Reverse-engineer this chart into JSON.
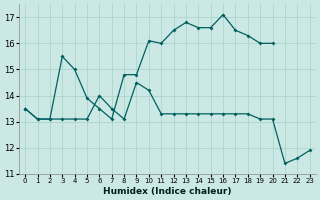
{
  "xlabel": "Humidex (Indice chaleur)",
  "background_color": "#cce8e4",
  "grid_color": "#b0d8d0",
  "line_color": "#006060",
  "xlim": [
    -0.5,
    23.5
  ],
  "ylim": [
    11,
    17.5
  ],
  "yticks": [
    11,
    12,
    13,
    14,
    15,
    16,
    17
  ],
  "xticks": [
    0,
    1,
    2,
    3,
    4,
    5,
    6,
    7,
    8,
    9,
    10,
    11,
    12,
    13,
    14,
    15,
    16,
    17,
    18,
    19,
    20,
    21,
    22,
    23
  ],
  "line1_x": [
    0,
    1,
    2,
    3,
    4,
    5,
    6,
    7,
    8,
    9,
    10,
    11,
    12,
    13,
    14,
    15,
    16,
    17,
    18,
    19,
    20
  ],
  "line1_y": [
    13.5,
    13.1,
    13.1,
    15.5,
    15.0,
    13.9,
    13.5,
    13.1,
    14.8,
    14.8,
    16.1,
    16.0,
    16.5,
    16.8,
    16.6,
    16.6,
    17.1,
    16.5,
    16.3,
    16.0,
    16.0
  ],
  "line2_x": [
    0,
    1,
    2,
    3,
    4,
    5,
    6,
    7,
    8,
    9,
    10,
    11,
    12,
    13,
    14,
    15,
    16,
    17,
    18,
    19,
    20,
    21,
    22,
    23
  ],
  "line2_y": [
    13.5,
    13.1,
    13.1,
    13.1,
    13.1,
    13.1,
    14.0,
    13.5,
    13.1,
    14.5,
    14.2,
    13.3,
    13.3,
    13.3,
    13.3,
    13.3,
    13.3,
    13.3,
    13.3,
    13.1,
    13.1,
    11.4,
    11.6,
    11.9
  ]
}
